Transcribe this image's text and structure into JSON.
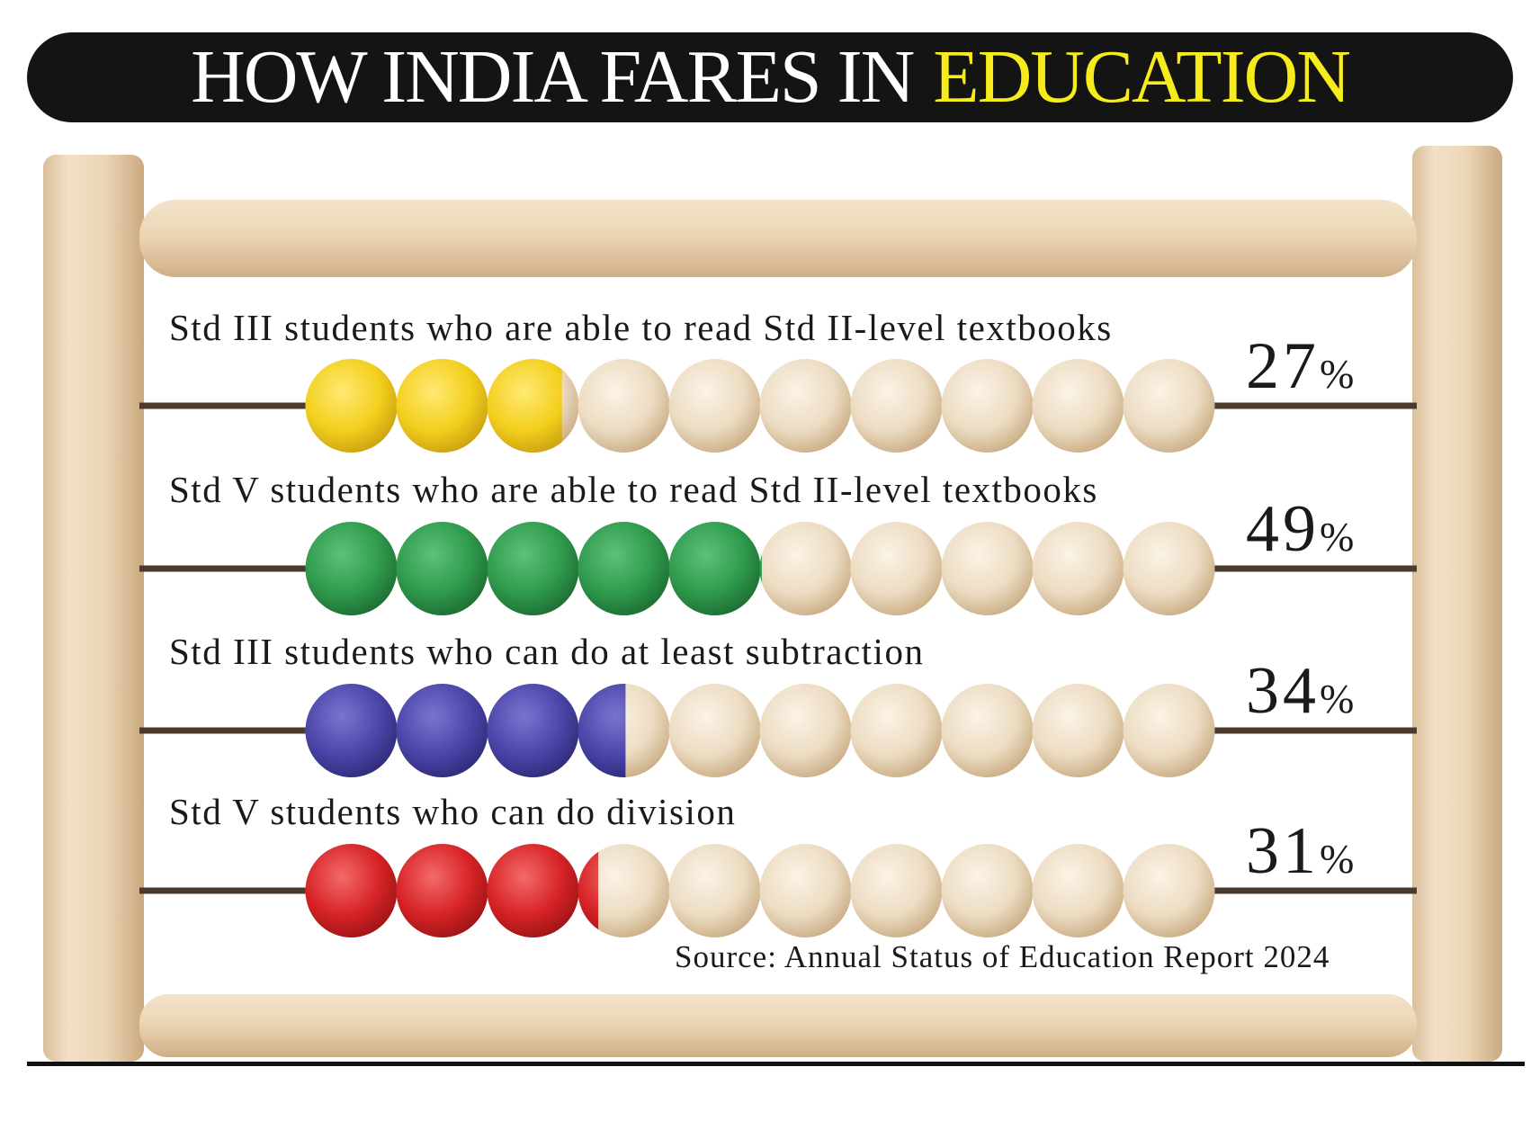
{
  "title": {
    "main": "HOW INDIA FARES IN",
    "accent": "EDUCATION"
  },
  "source": "Source: Annual Status of Education Report 2024",
  "colors": {
    "title_bg": "#141414",
    "accent": "#f6ec1c",
    "wood": "#e9d3b4",
    "bead_natural": "#ecdcc2"
  },
  "chart_data": {
    "type": "bar",
    "title": "HOW INDIA FARES IN EDUCATION",
    "unit": "%",
    "ylim": [
      0,
      100
    ],
    "categories": [
      "Std III students who are able to read Std II-level textbooks",
      "Std V students who are able to read Std II-level textbooks",
      "Std III students who can do at least subtraction",
      "Std V students who can do division"
    ],
    "values": [
      27,
      49,
      34,
      31
    ],
    "value_labels": [
      "27",
      "49",
      "34",
      "31"
    ],
    "bead_colors": [
      "#f3cf1d",
      "#2f9a4c",
      "#4b45a8",
      "#d62326"
    ]
  }
}
